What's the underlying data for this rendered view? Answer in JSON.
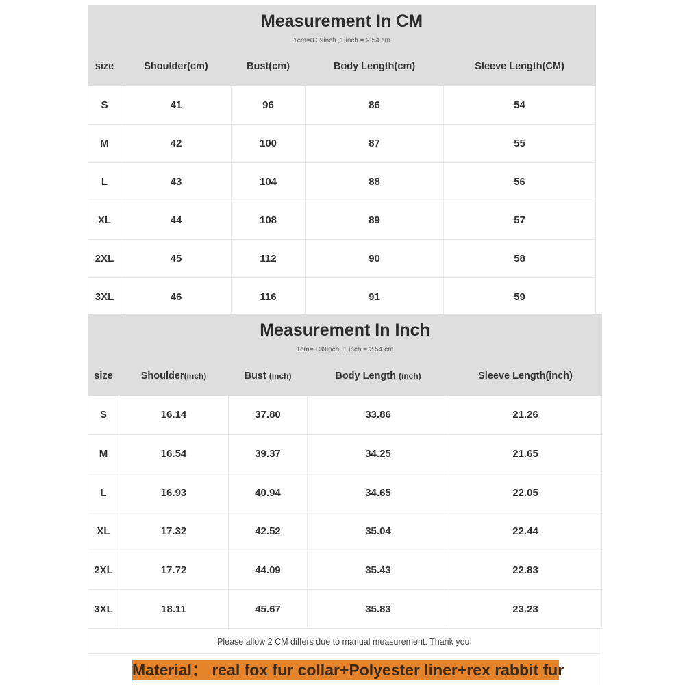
{
  "cm_table": {
    "title": "Measurement In CM",
    "conversion": "1cm=0.39inch ,1 inch = 2.54 cm",
    "headers": [
      "size",
      "Shoulder(cm)",
      "Bust(cm)",
      "Body Length(cm)",
      "Sleeve Length(CM)"
    ],
    "rows": [
      [
        "S",
        "41",
        "96",
        "86",
        "54"
      ],
      [
        "M",
        "42",
        "100",
        "87",
        "55"
      ],
      [
        "L",
        "43",
        "104",
        "88",
        "56"
      ],
      [
        "XL",
        "44",
        "108",
        "89",
        "57"
      ],
      [
        "2XL",
        "45",
        "112",
        "90",
        "58"
      ],
      [
        "3XL",
        "46",
        "116",
        "91",
        "59"
      ]
    ]
  },
  "inch_table": {
    "title": "Measurement In Inch",
    "conversion": "1cm=0.39inch ,1 inch = 2.54 cm",
    "headers": [
      {
        "main": "size",
        "unit": ""
      },
      {
        "main": "Shoulder",
        "unit": "(inch)"
      },
      {
        "main": "Bust ",
        "unit": "(inch)"
      },
      {
        "main": "Body Length ",
        "unit": "(inch)"
      },
      {
        "main": "Sleeve Length(inch)",
        "unit": ""
      }
    ],
    "rows": [
      [
        "S",
        "16.14",
        "37.80",
        "33.86",
        "21.26"
      ],
      [
        "M",
        "16.54",
        "39.37",
        "34.25",
        "21.65"
      ],
      [
        "L",
        "16.93",
        "40.94",
        "34.65",
        "22.05"
      ],
      [
        "XL",
        "17.32",
        "42.52",
        "35.04",
        "22.44"
      ],
      [
        "2XL",
        "17.72",
        "44.09",
        "35.43",
        "22.83"
      ],
      [
        "3XL",
        "18.11",
        "45.67",
        "35.83",
        "23.23"
      ]
    ]
  },
  "note": "Please allow 2 CM differs due to manual measurement. Thank you.",
  "material": "Material： real fox fur collar+Polyester liner+rex rabbit fur",
  "colors": {
    "header_bg": "#dedede",
    "material_bg": "#e5832a"
  }
}
